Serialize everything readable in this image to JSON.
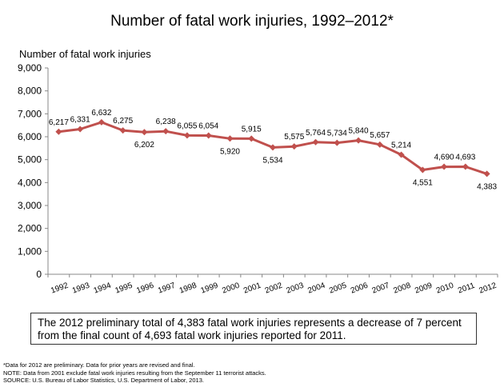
{
  "chart_data": {
    "type": "line",
    "title": "Number of fatal work injuries, 1992–2012*",
    "ylabel": "Number of fatal work injuries",
    "xlabel": "",
    "ylim": [
      0,
      9000
    ],
    "yticks": [
      "0",
      "1,000",
      "2,000",
      "3,000",
      "4,000",
      "5,000",
      "6,000",
      "7,000",
      "8,000",
      "9,000"
    ],
    "categories": [
      "1992",
      "1993",
      "1994",
      "1995",
      "1996",
      "1997",
      "1998",
      "1999",
      "2000",
      "2001",
      "2002",
      "2003",
      "2004",
      "2005",
      "2006",
      "2007",
      "2008",
      "2009",
      "2010",
      "2011",
      "2012"
    ],
    "values": [
      6217,
      6331,
      6632,
      6275,
      6202,
      6238,
      6055,
      6054,
      5920,
      5915,
      5534,
      5575,
      5764,
      5734,
      5840,
      5657,
      5214,
      4551,
      4690,
      4693,
      4383
    ],
    "data_labels": [
      "6,217",
      "6,331",
      "6,632",
      "6,275",
      "6,202",
      "6,238",
      "6,055",
      "6,054",
      "5,920",
      "5,915",
      "5,534",
      "5,575",
      "5,764",
      "5,734",
      "5,840",
      "5,657",
      "5,214",
      "4,551",
      "4,690",
      "4,693",
      "4,383"
    ],
    "label_position": [
      "above",
      "above",
      "above",
      "above",
      "below",
      "above",
      "above",
      "above",
      "below",
      "above",
      "below",
      "above",
      "above",
      "above",
      "above",
      "above",
      "above",
      "below",
      "above",
      "above",
      "below"
    ],
    "line_color": "#c0504d",
    "grid": false,
    "legend": "none"
  },
  "callout": "The 2012 preliminary total of 4,383 fatal work injuries represents a decrease of 7 percent from the final count of 4,693 fatal work injuries reported for 2011.",
  "footnotes": [
    "*Data for 2012 are preliminary. Data for prior years are revised and final.",
    "NOTE: Data from 2001 exclude fatal work injuries resulting from the September 11 terrorist attacks.",
    "SOURCE: U.S. Bureau of Labor Statistics, U.S. Department of Labor, 2013."
  ]
}
